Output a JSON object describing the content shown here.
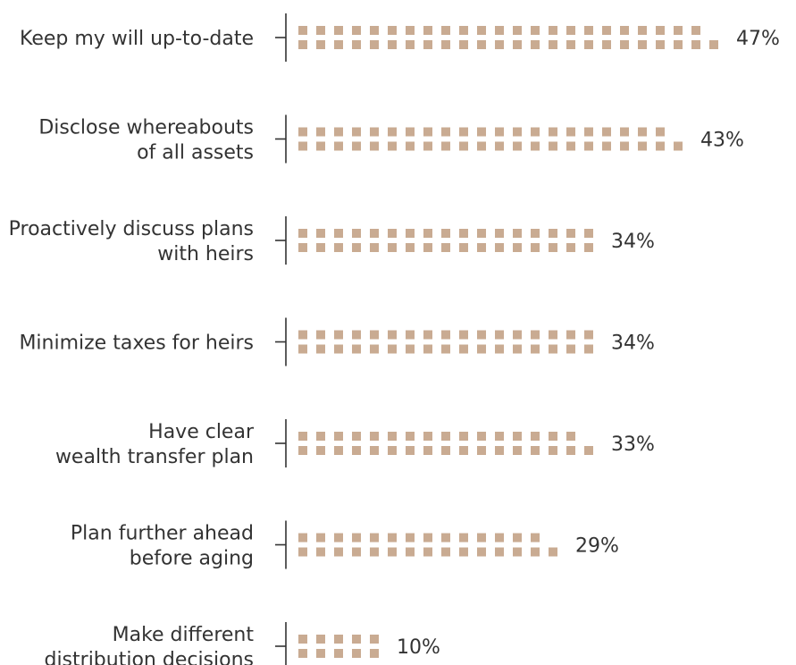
{
  "chart_data": {
    "type": "bar",
    "orientation": "horizontal",
    "style": "pictograph-squares",
    "categories": [
      [
        "Keep my will up-to-date"
      ],
      [
        "Disclose whereabouts",
        "of all assets"
      ],
      [
        "Proactively discuss plans",
        "with heirs"
      ],
      [
        "Minimize taxes for heirs"
      ],
      [
        "Have clear",
        "wealth transfer plan"
      ],
      [
        "Plan further ahead",
        "before aging"
      ],
      [
        "Make different",
        "distribution decisions"
      ]
    ],
    "values": [
      47,
      43,
      34,
      34,
      33,
      29,
      10
    ],
    "value_labels": [
      "47%",
      "43%",
      "34%",
      "34%",
      "33%",
      "29%",
      "10%"
    ],
    "unit": "%",
    "grid": false,
    "legend": "none",
    "colors": {
      "square": "#c9ab92",
      "axis": "#333333",
      "text": "#333333"
    }
  }
}
